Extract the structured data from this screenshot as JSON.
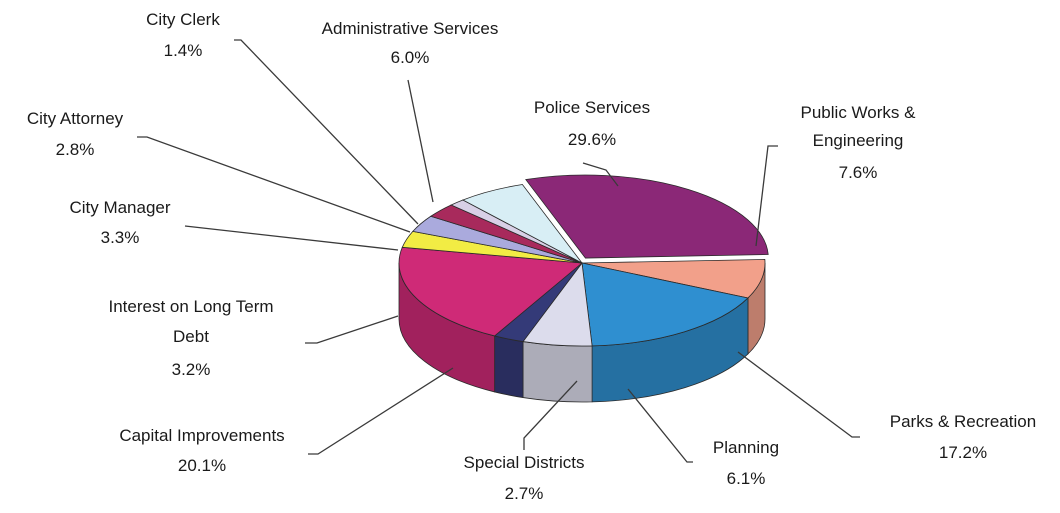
{
  "chart_data": {
    "type": "pie",
    "title": "",
    "categories": [
      "Police Services",
      "Public Works & Engineering",
      "Parks & Recreation",
      "Planning",
      "Special Districts",
      "Capital Improvements",
      "Interest on Long Term Debt",
      "City Manager",
      "City Attorney",
      "City Clerk",
      "Administrative Services"
    ],
    "values": [
      29.6,
      7.6,
      17.2,
      6.1,
      2.7,
      20.1,
      3.2,
      3.3,
      2.8,
      1.4,
      6.0
    ],
    "value_labels": [
      "29.6%",
      "7.6%",
      "17.2%",
      "6.1%",
      "2.7%",
      "20.1%",
      "3.2%",
      "3.3%",
      "2.8%",
      "1.4%",
      "6.0%"
    ],
    "colors": [
      "#8b2877",
      "#f2a08a",
      "#2f8fd0",
      "#dcdcec",
      "#343a78",
      "#cf2a77",
      "#f2ec44",
      "#aaaadd",
      "#a82a5c",
      "#d8d0e6",
      "#d8eef5"
    ],
    "style": "3d-exploded",
    "legend": "none"
  }
}
